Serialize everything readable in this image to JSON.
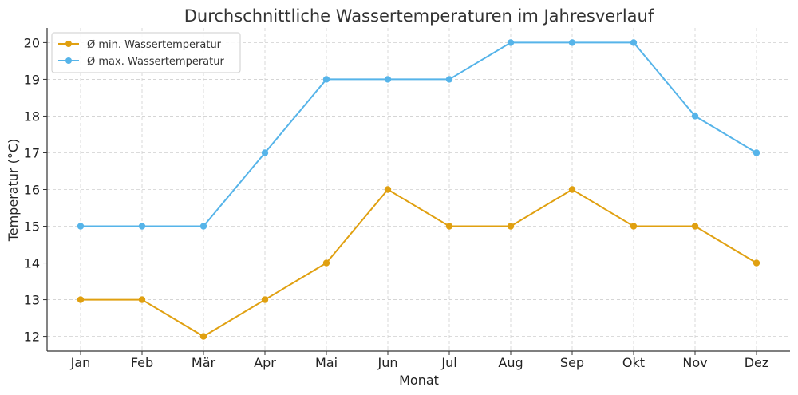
{
  "chart_data": {
    "type": "line",
    "title": "Durchschnittliche Wassertemperaturen im Jahresverlauf",
    "xlabel": "Monat",
    "ylabel": "Temperatur (°C)",
    "categories": [
      "Jan",
      "Feb",
      "Mär",
      "Apr",
      "Mai",
      "Jun",
      "Jul",
      "Aug",
      "Sep",
      "Okt",
      "Nov",
      "Dez"
    ],
    "yticks": [
      12,
      13,
      14,
      15,
      16,
      17,
      18,
      19,
      20
    ],
    "ylim": [
      11.6,
      20.4
    ],
    "grid": true,
    "legend_position": "top-left",
    "series": [
      {
        "name": "Ø min. Wassertemperatur",
        "color": "#E0A010",
        "values": [
          13,
          13,
          12,
          13,
          14,
          16,
          15,
          15,
          16,
          15,
          15,
          14
        ]
      },
      {
        "name": "Ø max. Wassertemperatur",
        "color": "#56B4E9",
        "values": [
          15,
          15,
          15,
          17,
          19,
          19,
          19,
          20,
          20,
          20,
          18,
          17
        ]
      }
    ]
  }
}
